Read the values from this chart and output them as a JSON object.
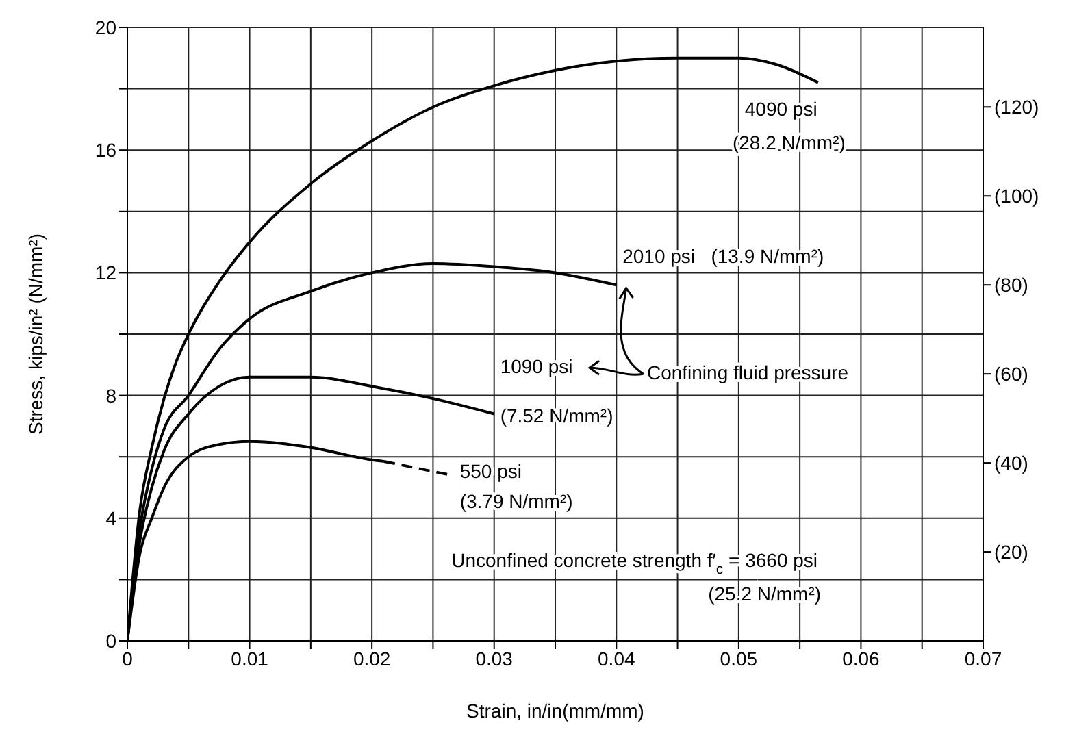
{
  "chart_data": {
    "type": "line",
    "xlabel": "Strain, in/in(mm/mm)",
    "ylabel": "Stress, kips/in² (N/mm²)",
    "xlim": [
      0,
      0.07
    ],
    "ylim": [
      0,
      20
    ],
    "y2lim": [
      0,
      137.9
    ],
    "xticks": [
      0,
      {
        "value": 0.005,
        "label": null
      },
      0.01,
      {
        "value": 0.015,
        "label": null
      },
      0.02,
      {
        "value": 0.025,
        "label": null
      },
      0.03,
      {
        "value": 0.035,
        "label": null
      },
      0.04,
      {
        "value": 0.045,
        "label": null
      },
      0.05,
      {
        "value": 0.055,
        "label": null
      },
      0.06,
      {
        "value": 0.065,
        "label": null
      },
      0.07
    ],
    "yticks": [
      0,
      {
        "value": 2,
        "label": null
      },
      4,
      {
        "value": 6,
        "label": null
      },
      8,
      {
        "value": 10,
        "label": null
      },
      12,
      {
        "value": 14,
        "label": null
      },
      16,
      {
        "value": 18,
        "label": null
      },
      20
    ],
    "y2ticks": [
      {
        "value": 20,
        "label": "(20)"
      },
      {
        "value": 40,
        "label": "(40)"
      },
      {
        "value": 60,
        "label": "(60)"
      },
      {
        "value": 80,
        "label": "(80)"
      },
      {
        "value": 100,
        "label": "(100)"
      },
      {
        "value": 120,
        "label": "(120)"
      }
    ],
    "grid": true,
    "marker": "none",
    "series": [
      {
        "color": "#000000",
        "x": [
          0,
          0.001,
          0.002,
          0.003,
          0.004,
          0.005,
          0.0075,
          0.01,
          0.015,
          0.02,
          0.025,
          0.03,
          0.035,
          0.04,
          0.045,
          0.05,
          0.053,
          0.0565
        ],
        "values": [
          0,
          4.2,
          6.3,
          7.9,
          9.1,
          10.0,
          11.7,
          13.0,
          14.9,
          16.3,
          17.4,
          18.1,
          18.6,
          18.9,
          19.0,
          19.0,
          18.8,
          18.2
        ]
      },
      {
        "color": "#000000",
        "x": [
          0,
          0.001,
          0.002,
          0.003,
          0.005,
          0.0075,
          0.01,
          0.015,
          0.02,
          0.025,
          0.03,
          0.035,
          0.04
        ],
        "values": [
          0,
          3.6,
          5.6,
          6.9,
          8.0,
          9.5,
          10.5,
          11.4,
          12.0,
          12.3,
          12.2,
          12.0,
          11.6
        ]
      },
      {
        "color": "#000000",
        "x": [
          0,
          0.001,
          0.002,
          0.003,
          0.005,
          0.0075,
          0.01,
          0.015,
          0.02,
          0.025,
          0.03
        ],
        "values": [
          0,
          3.2,
          5.0,
          6.2,
          7.4,
          8.3,
          8.6,
          8.6,
          8.3,
          7.9,
          7.4
        ]
      },
      {
        "color": "#000000",
        "x": [
          0,
          0.001,
          0.002,
          0.003,
          0.005,
          0.0075,
          0.01,
          0.015,
          0.02,
          0.021
        ],
        "values": [
          0,
          2.8,
          4.0,
          5.0,
          6.0,
          6.4,
          6.5,
          6.3,
          5.9,
          5.85
        ]
      },
      {
        "color": "#000000",
        "line_style": "dashed",
        "x": [
          0.021,
          0.0265
        ],
        "values": [
          5.85,
          5.4
        ]
      }
    ],
    "annotations": [
      "4090 psi",
      "(28.2 N/mm²)",
      "2010 psi   (13.9 N/mm²)",
      "1090 psi",
      "(7.52 N/mm²)",
      "550 psi",
      "(3.79 N/mm²)",
      "Confining fluid pressure",
      "Unconfined concrete strength f′$_{c}$ = 3660 psi",
      "(25.2 N/mm²)"
    ]
  }
}
